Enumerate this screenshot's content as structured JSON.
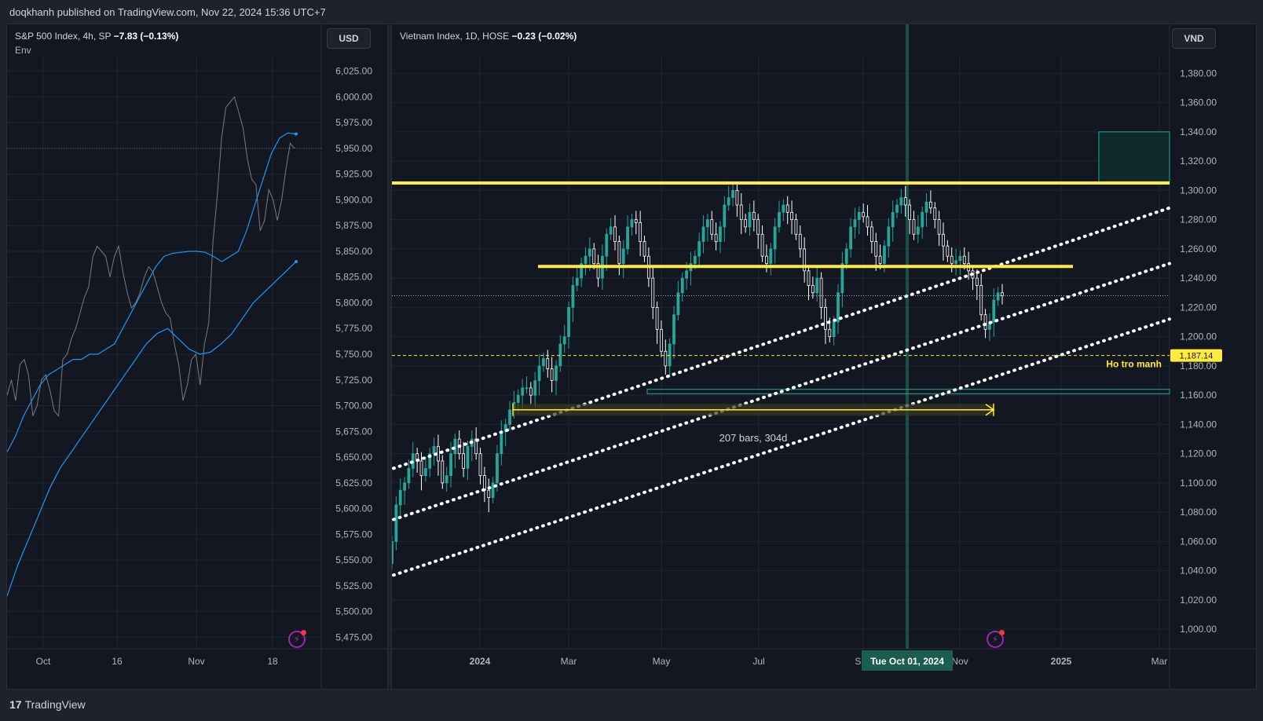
{
  "header": {
    "text": "doqkhanh published on TradingView.com, Nov 22, 2024 15:36 UTC+7"
  },
  "left_pane": {
    "symbol": "S&P 500 Index, 4h, SP",
    "change": "−7.83 (−0.13%)",
    "indicator": "Env",
    "currency": "USD",
    "y_ticks": [
      "6,025.00",
      "6,000.00",
      "5,975.00",
      "5,950.00",
      "5,925.00",
      "5,900.00",
      "5,875.00",
      "5,850.00",
      "5,825.00",
      "5,800.00",
      "5,775.00",
      "5,750.00",
      "5,725.00",
      "5,700.00",
      "5,675.00",
      "5,650.00",
      "5,625.00",
      "5,600.00",
      "5,575.00",
      "5,550.00",
      "5,525.00",
      "5,500.00",
      "5,475.00"
    ],
    "x_ticks": [
      "Oct",
      "16",
      "Nov",
      "18"
    ]
  },
  "right_pane": {
    "symbol": "Vietnam Index, 1D, HOSE",
    "change": "−0.23 (−0.02%)",
    "currency": "VND",
    "y_ticks": [
      "1,380.00",
      "1,360.00",
      "1,340.00",
      "1,320.00",
      "1,300.00",
      "1,280.00",
      "1,260.00",
      "1,240.00",
      "1,220.00",
      "1,200.00",
      "1,180.00",
      "1,160.00",
      "1,140.00",
      "1,120.00",
      "1,100.00",
      "1,080.00",
      "1,060.00",
      "1,040.00",
      "1,020.00",
      "1,000.00"
    ],
    "x_ticks": [
      "2024",
      "Mar",
      "May",
      "Jul",
      "Sep",
      "Nov",
      "2025",
      "Mar"
    ],
    "crosshair_date": "Tue Oct 01, 2024",
    "price_label": "1,187.14",
    "support_label": "Ho tro manh",
    "measure_label": "207 bars, 304d"
  },
  "footer": {
    "brand": "TradingView"
  },
  "colors": {
    "background": "#131722",
    "grid": "#1f2430",
    "up": "#26a69a",
    "down": "#ffffff",
    "line_yellow": "#ffeb3b",
    "env_blue": "#2196f3",
    "crosshair": "#1b5e50",
    "price_label_bg": "#ffeb3b",
    "sp_line": "#787b86"
  },
  "chart_data": [
    {
      "type": "line",
      "title": "S&P 500 Index, 4h, SP",
      "ylim": [
        5460,
        6040
      ],
      "x_range": [
        "2024-09-26",
        "2024-11-22"
      ],
      "series": [
        {
          "values": [
            5710,
            5725,
            5705,
            5740,
            5745,
            5730,
            5690,
            5700,
            5725,
            5730,
            5715,
            5695,
            5690,
            5745,
            5750,
            5765,
            5775,
            5790,
            5805,
            5815,
            5845,
            5855,
            5850,
            5845,
            5825,
            5845,
            5855,
            5830,
            5810,
            5795,
            5800,
            5810,
            5825,
            5835,
            5830,
            5815,
            5800,
            5790,
            5785,
            5760,
            5740,
            5705,
            5720,
            5745,
            5750,
            5720,
            5760,
            5780,
            5860,
            5905,
            5960,
            5990,
            5995,
            6000,
            5985,
            5970,
            5940,
            5920,
            5915,
            5870,
            5880,
            5910,
            5900,
            5880,
            5900,
            5930,
            5955,
            5950
          ]
        },
        {
          "values": [
            5655,
            5670,
            5690,
            5705,
            5720,
            5730,
            5735,
            5740,
            5745,
            5745,
            5750,
            5750,
            5755,
            5760,
            5775,
            5790,
            5805,
            5820,
            5835,
            5845,
            5848,
            5849,
            5850,
            5850,
            5849,
            5845,
            5840,
            5845,
            5850,
            5870,
            5895,
            5920,
            5945,
            5960,
            5965,
            5964
          ]
        },
        {
          "values": [
            5515,
            5545,
            5570,
            5595,
            5620,
            5640,
            5655,
            5670,
            5685,
            5700,
            5715,
            5730,
            5745,
            5760,
            5770,
            5775,
            5765,
            5755,
            5750,
            5752,
            5760,
            5770,
            5785,
            5800,
            5810,
            5820,
            5830,
            5840
          ]
        }
      ]
    },
    {
      "type": "candlestick",
      "title": "Vietnam Index, 1D, HOSE",
      "ylim": [
        984,
        1392
      ],
      "x_range": [
        "2023-11-01",
        "2025-03-31"
      ],
      "closes": [
        1060,
        1085,
        1095,
        1100,
        1110,
        1120,
        1115,
        1105,
        1110,
        1120,
        1125,
        1115,
        1100,
        1105,
        1120,
        1130,
        1120,
        1110,
        1125,
        1130,
        1120,
        1105,
        1095,
        1090,
        1100,
        1120,
        1135,
        1140,
        1150,
        1155,
        1160,
        1165,
        1165,
        1160,
        1170,
        1180,
        1185,
        1178,
        1170,
        1180,
        1195,
        1200,
        1220,
        1235,
        1240,
        1250,
        1255,
        1260,
        1250,
        1240,
        1255,
        1270,
        1275,
        1265,
        1250,
        1260,
        1275,
        1280,
        1278,
        1265,
        1255,
        1240,
        1220,
        1205,
        1190,
        1180,
        1195,
        1215,
        1230,
        1240,
        1245,
        1250,
        1255,
        1265,
        1275,
        1280,
        1270,
        1265,
        1275,
        1290,
        1295,
        1300,
        1290,
        1280,
        1275,
        1285,
        1280,
        1270,
        1255,
        1250,
        1260,
        1275,
        1285,
        1290,
        1285,
        1280,
        1270,
        1260,
        1245,
        1235,
        1230,
        1240,
        1220,
        1205,
        1200,
        1210,
        1230,
        1250,
        1260,
        1275,
        1280,
        1285,
        1282,
        1275,
        1265,
        1255,
        1250,
        1262,
        1275,
        1285,
        1290,
        1295,
        1290,
        1280,
        1270,
        1275,
        1285,
        1292,
        1288,
        1280,
        1270,
        1262,
        1255,
        1250,
        1252,
        1255,
        1250,
        1245,
        1240,
        1235,
        1215,
        1205,
        1210,
        1225,
        1230,
        1228
      ]
    }
  ]
}
